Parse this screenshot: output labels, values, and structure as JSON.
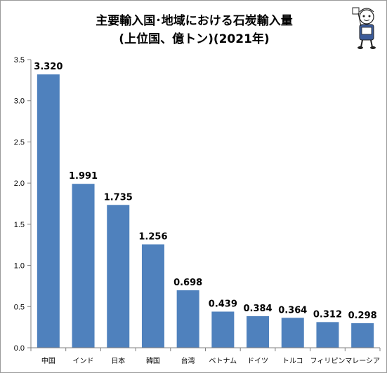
{
  "chart_data": {
    "type": "bar",
    "title": "主要輸入国･地域における石炭輸入量",
    "subtitle": "(上位国、億トン)(2021年)",
    "categories": [
      "中国",
      "インド",
      "日本",
      "韓国",
      "台湾",
      "ベトナム",
      "ドイツ",
      "トルコ",
      "フィリピン",
      "マレーシア"
    ],
    "values": [
      3.32,
      1.991,
      1.735,
      1.256,
      0.698,
      0.439,
      0.384,
      0.364,
      0.312,
      0.298
    ],
    "value_labels": [
      "3.320",
      "1.991",
      "1.735",
      "1.256",
      "0.698",
      "0.439",
      "0.384",
      "0.364",
      "0.312",
      "0.298"
    ],
    "y_ticks": [
      "0.0",
      "0.5",
      "1.0",
      "1.5",
      "2.0",
      "2.5",
      "3.0",
      "3.5"
    ],
    "ylim": [
      0,
      3.5
    ],
    "xlabel": "",
    "ylabel": "",
    "grid": false,
    "legend": "none",
    "bar_color": "#4f81bd",
    "axis_color": "#808080"
  }
}
